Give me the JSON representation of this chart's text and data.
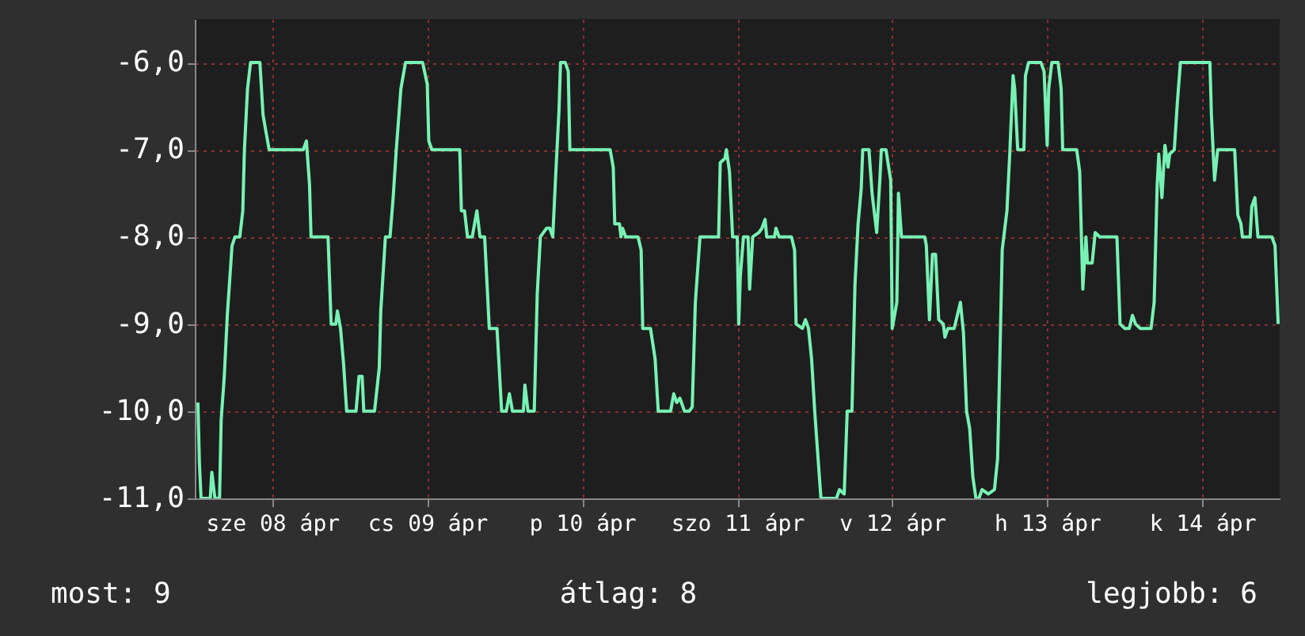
{
  "chart_data": {
    "type": "line",
    "x": [
      "--04-08T00:29",
      "--04-08T00:43",
      "--04-08T00:58",
      "--04-08T02:24",
      "--04-08T02:38",
      "--04-08T03:07",
      "--04-08T03:50",
      "--04-08T04:05",
      "--04-08T04:34",
      "--04-08T05:02",
      "--04-08T05:46",
      "--04-08T06:14",
      "--04-08T06:58",
      "--04-08T07:26",
      "--04-08T07:41",
      "--04-08T08:10",
      "--04-08T08:38",
      "--04-08T10:05",
      "--04-08T10:34",
      "--04-08T11:02",
      "--04-08T11:31",
      "--04-08T16:48",
      "--04-08T17:17",
      "--04-08T17:46",
      "--04-08T18:00",
      "--04-08T20:38",
      "--04-08T21:07",
      "--04-08T21:50",
      "--04-08T22:05",
      "--04-08T22:34",
      "--04-08T23:02",
      "--04-08T23:31",
      "--04-09T00:58",
      "--04-09T01:26",
      "--04-09T01:55",
      "--04-09T02:10",
      "--04-09T03:50",
      "--04-09T04:34",
      "--04-09T04:48",
      "--04-09T05:31",
      "--04-09T06:14",
      "--04-09T06:43",
      "--04-09T07:12",
      "--04-09T07:55",
      "--04-09T08:38",
      "--04-09T11:17",
      "--04-09T12:00",
      "--04-09T12:14",
      "--04-09T12:43",
      "--04-09T17:02",
      "--04-09T17:17",
      "--04-09T17:46",
      "--04-09T18:14",
      "--04-09T18:58",
      "--04-09T19:41",
      "--04-09T20:10",
      "--04-09T20:53",
      "--04-09T21:22",
      "--04-09T21:36",
      "--04-09T22:48",
      "--04-09T23:31",
      "--04-10T00:14",
      "--04-10T00:43",
      "--04-10T01:12",
      "--04-10T02:53",
      "--04-10T03:07",
      "--04-10T03:36",
      "--04-10T04:34",
      "--04-10T05:02",
      "--04-10T05:31",
      "--04-10T06:29",
      "--04-10T06:58",
      "--04-10T07:26",
      "--04-10T07:55",
      "--04-10T08:24",
      "--04-10T08:38",
      "--04-10T09:22",
      "--04-10T09:50",
      "--04-10T10:05",
      "--04-10T16:19",
      "--04-10T16:48",
      "--04-10T17:02",
      "--04-10T17:46",
      "--04-10T18:00",
      "--04-10T18:14",
      "--04-10T18:43",
      "--04-10T20:38",
      "--04-10T21:07",
      "--04-10T21:22",
      "--04-10T22:34",
      "--04-10T23:17",
      "--04-10T23:46",
      "--04-11T01:41",
      "--04-11T02:10",
      "--04-11T02:38",
      "--04-11T03:07",
      "--04-11T03:50",
      "--04-11T04:34",
      "--04-11T05:02",
      "--04-11T05:31",
      "--04-11T06:14",
      "--04-11T09:07",
      "--04-11T09:22",
      "--04-11T10:05",
      "--04-11T10:19",
      "--04-11T10:48",
      "--04-11T11:17",
      "--04-11T12:00",
      "--04-11T12:14",
      "--04-11T12:29",
      "--04-11T12:58",
      "--04-11T13:41",
      "--04-11T13:55",
      "--04-11T14:24",
      "--04-11T15:22",
      "--04-11T15:50",
      "--04-11T16:19",
      "--04-11T16:34",
      "--04-11T17:46",
      "--04-11T18:00",
      "--04-11T18:29",
      "--04-11T20:24",
      "--04-11T20:53",
      "--04-11T21:07",
      "--04-11T22:05",
      "--04-11T22:34",
      "--04-11T23:02",
      "--04-11T23:31",
      "--04-12T00:00",
      "--04-12T00:43",
      "--04-12T00:58",
      "--04-12T03:22",
      "--04-12T03:50",
      "--04-12T04:34",
      "--04-12T05:02",
      "--04-12T05:46",
      "--04-12T06:14",
      "--04-12T06:43",
      "--04-12T07:12",
      "--04-12T07:26",
      "--04-12T08:24",
      "--04-12T08:53",
      "--04-12T09:07",
      "--04-12T09:36",
      "--04-12T10:05",
      "--04-12T10:19",
      "--04-12T11:02",
      "--04-12T11:46",
      "--04-12T12:00",
      "--04-12T12:43",
      "--04-12T12:58",
      "--04-12T13:26",
      "--04-12T17:02",
      "--04-12T17:17",
      "--04-12T17:46",
      "--04-12T18:14",
      "--04-12T18:43",
      "--04-12T19:12",
      "--04-12T19:55",
      "--04-12T20:10",
      "--04-12T20:38",
      "--04-12T21:36",
      "--04-12T22:34",
      "--04-12T23:02",
      "--04-12T23:31",
      "--04-13T00:00",
      "--04-13T00:29",
      "--04-13T00:58",
      "--04-13T01:26",
      "--04-13T01:55",
      "--04-13T02:53",
      "--04-13T03:50",
      "--04-13T04:19",
      "--04-13T04:34",
      "--04-13T05:02",
      "--04-13T05:46",
      "--04-13T06:14",
      "--04-13T06:43",
      "--04-13T06:58",
      "--04-13T07:26",
      "--04-13T08:24",
      "--04-13T08:38",
      "--04-13T09:07",
      "--04-13T11:02",
      "--04-13T11:31",
      "--04-13T12:00",
      "--04-13T12:14",
      "--04-13T12:43",
      "--04-13T13:41",
      "--04-13T14:10",
      "--04-13T14:24",
      "--04-13T16:34",
      "--04-13T17:02",
      "--04-13T17:31",
      "--04-13T18:00",
      "--04-13T18:14",
      "--04-13T18:58",
      "--04-13T19:26",
      "--04-13T20:10",
      "--04-13T22:48",
      "--04-13T23:17",
      "--04-14T00:00",
      "--04-14T00:43",
      "--04-14T01:12",
      "--04-14T01:41",
      "--04-14T02:24",
      "--04-14T04:05",
      "--04-14T04:34",
      "--04-14T05:02",
      "--04-14T05:17",
      "--04-14T05:46",
      "--04-14T06:14",
      "--04-14T06:43",
      "--04-14T06:58",
      "--04-14T07:41",
      "--04-14T08:10",
      "--04-14T08:38",
      "--04-14T13:12",
      "--04-14T13:26",
      "--04-14T13:55",
      "--04-14T14:24",
      "--04-14T17:02",
      "--04-14T17:31",
      "--04-14T18:00",
      "--04-14T18:14",
      "--04-14T19:26",
      "--04-14T19:41",
      "--04-14T20:10",
      "--04-14T20:38",
      "--04-14T22:48",
      "--04-14T23:17",
      "--04-14T23:46"
    ],
    "series": [
      {
        "color": "#77f2b4",
        "values": [
          -9.9,
          -10.6,
          -11,
          -11,
          -10.7,
          -11,
          -11,
          -10.1,
          -9.6,
          -8.9,
          -8.1,
          -8.0,
          -8.0,
          -7.7,
          -7.0,
          -6.3,
          -6.0,
          -6.0,
          -6.6,
          -6.8,
          -7.0,
          -7.0,
          -6.9,
          -7.4,
          -8.0,
          -8.0,
          -9.0,
          -9.0,
          -8.85,
          -9.05,
          -9.45,
          -10,
          -10,
          -9.6,
          -9.6,
          -10,
          -10,
          -9.5,
          -8.85,
          -8.0,
          -8.0,
          -7.55,
          -7.0,
          -6.3,
          -6.0,
          -6.0,
          -6.25,
          -6.9,
          -7.0,
          -7.0,
          -7.7,
          -7.7,
          -8.0,
          -8.0,
          -7.7,
          -8.0,
          -8.0,
          -8.7,
          -9.05,
          -9.05,
          -10,
          -10,
          -9.8,
          -10,
          -10,
          -9.7,
          -10,
          -10,
          -8.65,
          -8.0,
          -7.9,
          -7.9,
          -8.0,
          -7.25,
          -6.55,
          -6.0,
          -6.0,
          -6.1,
          -7.0,
          -7.0,
          -7.2,
          -7.85,
          -7.85,
          -8.0,
          -7.9,
          -8.0,
          -8.0,
          -8.15,
          -9.05,
          -9.05,
          -9.4,
          -10,
          -10,
          -9.8,
          -9.9,
          -9.85,
          -10,
          -10,
          -9.95,
          -8.75,
          -8.0,
          -8.0,
          -7.15,
          -7.1,
          -7.0,
          -7.25,
          -8.0,
          -8.0,
          -9.0,
          -8.45,
          -8.0,
          -8.0,
          -8.6,
          -8.0,
          -7.95,
          -7.9,
          -7.8,
          -8.0,
          -8.0,
          -7.9,
          -8.0,
          -8.0,
          -8.15,
          -9.0,
          -9.05,
          -8.95,
          -9.05,
          -9.4,
          -10,
          -10.75,
          -11,
          -11,
          -10.9,
          -10.95,
          -10,
          -10,
          -8.55,
          -7.85,
          -7.45,
          -7.0,
          -7.0,
          -7.5,
          -7.65,
          -7.95,
          -7.35,
          -7.0,
          -7.0,
          -7.35,
          -9.05,
          -8.75,
          -7.5,
          -8.0,
          -8.0,
          -8.1,
          -8.95,
          -8.2,
          -8.2,
          -8.95,
          -9.0,
          -9.15,
          -9.05,
          -9.05,
          -8.75,
          -9.1,
          -10,
          -10.2,
          -10.75,
          -11,
          -11,
          -10.9,
          -10.95,
          -10.9,
          -10.55,
          -9.75,
          -8.15,
          -7.7,
          -7.0,
          -6.15,
          -6.3,
          -7.0,
          -7.0,
          -6.15,
          -6.0,
          -6.0,
          -6.1,
          -6.95,
          -6.3,
          -6.0,
          -6.0,
          -6.3,
          -7.0,
          -7.0,
          -7.25,
          -8.6,
          -8.0,
          -8.3,
          -8.3,
          -7.95,
          -8.0,
          -8.0,
          -9.0,
          -9.05,
          -9.05,
          -8.9,
          -9.0,
          -9.05,
          -9.05,
          -8.75,
          -7.4,
          -7.05,
          -7.55,
          -6.95,
          -7.2,
          -7.05,
          -7.0,
          -6.45,
          -6.0,
          -6.0,
          -6.6,
          -7.35,
          -7.0,
          -7.0,
          -7.75,
          -7.85,
          -8.0,
          -8.0,
          -7.65,
          -7.55,
          -8.0,
          -8.0,
          -8.1,
          -9.0
        ]
      }
    ],
    "xlim": [
      "--04-08T00:00",
      "--04-15T00:00"
    ],
    "xticks": [
      {
        "value": "--04-08T12:00",
        "label": "sze 08 ápr"
      },
      {
        "value": "--04-09T12:00",
        "label": "cs 09 ápr"
      },
      {
        "value": "--04-10T12:00",
        "label": "p 10 ápr"
      },
      {
        "value": "--04-11T12:00",
        "label": "szo 11 ápr"
      },
      {
        "value": "--04-12T12:00",
        "label": "v 12 ápr"
      },
      {
        "value": "--04-13T12:00",
        "label": "h 13 ápr"
      },
      {
        "value": "--04-14T12:00",
        "label": "k 14 ápr"
      }
    ],
    "ylim": [
      -11,
      -5.5
    ],
    "yticks": [
      {
        "value": -11,
        "label": "-11,0"
      },
      {
        "value": -10,
        "label": "-10,0"
      },
      {
        "value": -9,
        "label": "-9,0"
      },
      {
        "value": -8,
        "label": "-8,0"
      },
      {
        "value": -7,
        "label": "-7,0"
      },
      {
        "value": -6,
        "label": "-6,0"
      }
    ],
    "grid": true,
    "annotations": [
      "most: 9",
      "átlag: 8",
      "legjobb: 6"
    ]
  }
}
